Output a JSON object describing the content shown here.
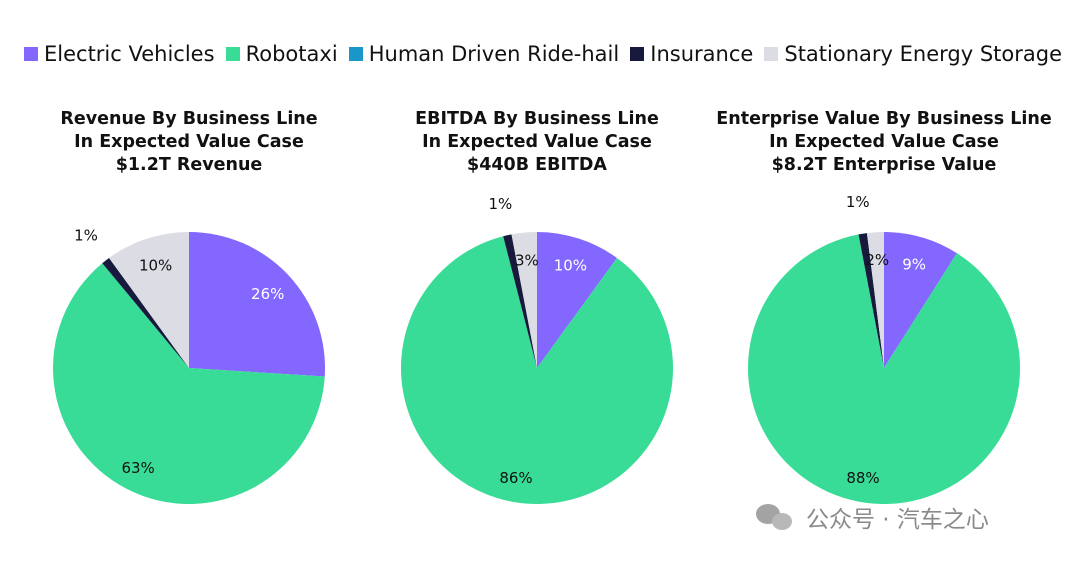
{
  "legend": [
    {
      "label": "Electric Vehicles",
      "color": "#8367ff"
    },
    {
      "label": "Robotaxi",
      "color": "#38dc96"
    },
    {
      "label": "Human Driven Ride-hail",
      "color": "#1a97c8"
    },
    {
      "label": "Insurance",
      "color": "#171a3c"
    },
    {
      "label": "Stationary Energy Storage",
      "color": "#dcdce4"
    }
  ],
  "chart_data": [
    {
      "type": "pie",
      "title_lines": [
        "Revenue By Business Line",
        "In Expected Value Case",
        "$1.2T Revenue"
      ],
      "categories": [
        "Electric Vehicles",
        "Robotaxi",
        "Human Driven Ride-hail",
        "Insurance",
        "Stationary Energy Storage"
      ],
      "values": [
        26,
        63,
        0,
        1,
        10
      ],
      "labels": [
        "26%",
        "63%",
        "",
        "1%",
        "10%"
      ]
    },
    {
      "type": "pie",
      "title_lines": [
        "EBITDA By Business Line",
        "In Expected Value Case",
        "$440B EBITDA"
      ],
      "categories": [
        "Electric Vehicles",
        "Robotaxi",
        "Human Driven Ride-hail",
        "Insurance",
        "Stationary Energy Storage"
      ],
      "values": [
        10,
        86,
        0,
        1,
        3
      ],
      "labels": [
        "10%",
        "86%",
        "",
        "1%",
        "3%"
      ]
    },
    {
      "type": "pie",
      "title_lines": [
        "Enterprise Value By Business Line",
        "In Expected Value Case",
        "$8.2T Enterprise Value"
      ],
      "categories": [
        "Electric Vehicles",
        "Robotaxi",
        "Human Driven Ride-hail",
        "Insurance",
        "Stationary Energy Storage"
      ],
      "values": [
        9,
        88,
        0,
        1,
        2
      ],
      "labels": [
        "9%",
        "88%",
        "",
        "1%",
        "2%"
      ]
    }
  ],
  "watermark": {
    "text": "公众号 · 汽车之心"
  }
}
